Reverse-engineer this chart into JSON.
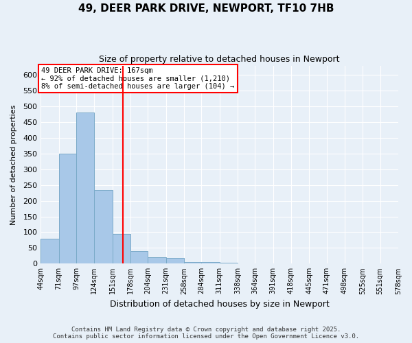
{
  "title_line1": "49, DEER PARK DRIVE, NEWPORT, TF10 7HB",
  "title_line2": "Size of property relative to detached houses in Newport",
  "xlabel": "Distribution of detached houses by size in Newport",
  "ylabel": "Number of detached properties",
  "bar_color": "#a8c8e8",
  "bar_edge_color": "#7aaac8",
  "background_color": "#e8f0f8",
  "grid_color": "#ffffff",
  "red_line_x": 167,
  "annotation_text": "49 DEER PARK DRIVE: 167sqm\n← 92% of detached houses are smaller (1,210)\n8% of semi-detached houses are larger (104) →",
  "footer_line1": "Contains HM Land Registry data © Crown copyright and database right 2025.",
  "footer_line2": "Contains public sector information licensed under the Open Government Licence v3.0.",
  "bin_edges": [
    44,
    71,
    97,
    124,
    151,
    178,
    204,
    231,
    258,
    284,
    311,
    338,
    364,
    391,
    418,
    445,
    471,
    498,
    525,
    551,
    578
  ],
  "bin_labels": [
    "44sqm",
    "71sqm",
    "97sqm",
    "124sqm",
    "151sqm",
    "178sqm",
    "204sqm",
    "231sqm",
    "258sqm",
    "284sqm",
    "311sqm",
    "338sqm",
    "364sqm",
    "391sqm",
    "418sqm",
    "445sqm",
    "471sqm",
    "498sqm",
    "525sqm",
    "551sqm",
    "578sqm"
  ],
  "counts": [
    80,
    350,
    480,
    235,
    95,
    40,
    20,
    18,
    5,
    5,
    2,
    0,
    0,
    0,
    0,
    1,
    0,
    0,
    1,
    1
  ],
  "ylim": [
    0,
    630
  ],
  "yticks": [
    0,
    50,
    100,
    150,
    200,
    250,
    300,
    350,
    400,
    450,
    500,
    550,
    600
  ]
}
